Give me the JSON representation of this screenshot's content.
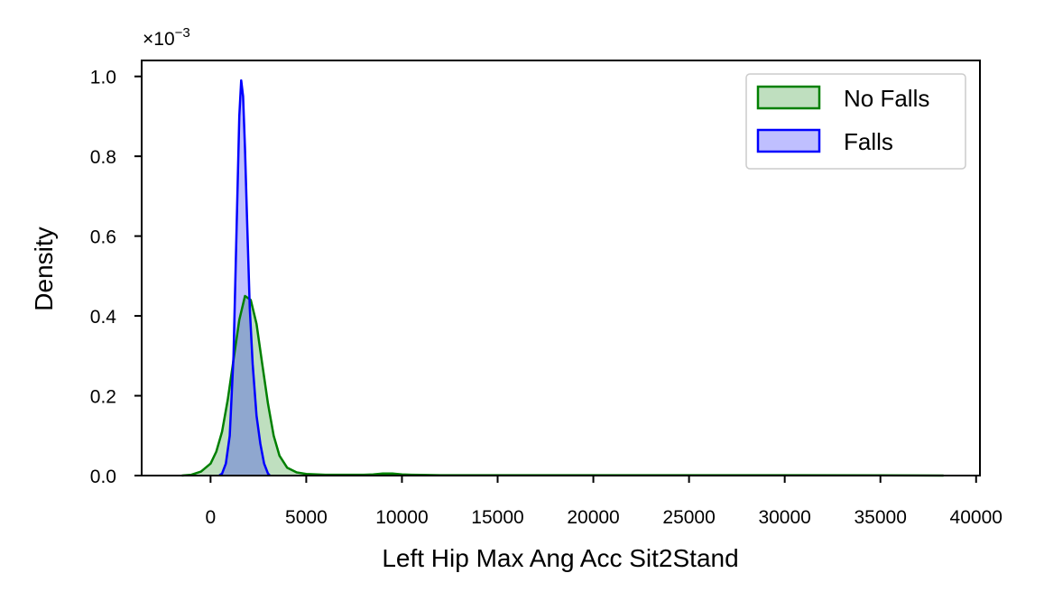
{
  "chart_data": {
    "type": "area",
    "xlabel": "Left Hip Max Ang Acc Sit2Stand",
    "ylabel": "Density",
    "y_offset_base": "×10",
    "y_offset_exponent": "−3",
    "xlim": [
      -3600,
      40200
    ],
    "ylim": [
      0,
      1.04
    ],
    "x_ticks": [
      0,
      5000,
      10000,
      15000,
      20000,
      25000,
      30000,
      35000,
      40000
    ],
    "x_tick_labels": [
      "0",
      "5000",
      "10000",
      "15000",
      "20000",
      "25000",
      "30000",
      "35000",
      "40000"
    ],
    "y_ticks": [
      0.0,
      0.2,
      0.4,
      0.6,
      0.8,
      1.0
    ],
    "y_tick_labels": [
      "0.0",
      "0.2",
      "0.4",
      "0.6",
      "0.8",
      "1.0"
    ],
    "legend_position": "top-right",
    "series": [
      {
        "name": "No Falls",
        "color": "#008000",
        "fill": "#008000",
        "fill_opacity": 0.25,
        "x": [
          -1500,
          -1000,
          -500,
          0,
          300,
          600,
          900,
          1200,
          1500,
          1800,
          2100,
          2400,
          2700,
          3000,
          3300,
          3600,
          4000,
          4500,
          5000,
          6000,
          7000,
          8000,
          8500,
          9000,
          9500,
          10000,
          10500,
          11000,
          12000,
          15000,
          20000,
          25000,
          30000,
          35000,
          38300
        ],
        "y": [
          0.0,
          0.002,
          0.01,
          0.03,
          0.06,
          0.11,
          0.19,
          0.29,
          0.39,
          0.45,
          0.44,
          0.38,
          0.28,
          0.18,
          0.1,
          0.05,
          0.02,
          0.008,
          0.004,
          0.002,
          0.002,
          0.002,
          0.003,
          0.005,
          0.005,
          0.003,
          0.002,
          0.0015,
          0.001,
          0.001,
          0.001,
          0.001,
          0.001,
          0.0005,
          0.0
        ]
      },
      {
        "name": "Falls",
        "color": "#0000ff",
        "fill": "#0000ff",
        "fill_opacity": 0.25,
        "x": [
          450,
          600,
          800,
          1000,
          1200,
          1350,
          1500,
          1600,
          1700,
          1800,
          1900,
          2050,
          2200,
          2400,
          2600,
          2800,
          3000,
          3100
        ],
        "y": [
          0.0,
          0.005,
          0.03,
          0.1,
          0.3,
          0.6,
          0.9,
          0.99,
          0.95,
          0.82,
          0.65,
          0.42,
          0.28,
          0.15,
          0.08,
          0.03,
          0.005,
          0.0
        ]
      }
    ]
  }
}
